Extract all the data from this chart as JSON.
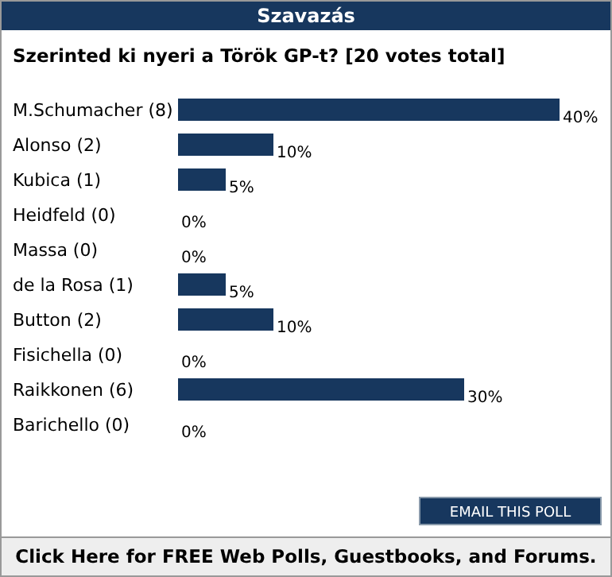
{
  "chart_data": {
    "type": "bar",
    "orientation": "horizontal",
    "title": "Szavazás",
    "subtitle": "Szerinted ki nyeri a Török GP-t? [20 votes total]",
    "categories": [
      "M.Schumacher (8)",
      "Alonso (2)",
      "Kubica (1)",
      "Heidfeld (0)",
      "Massa (0)",
      "de la Rosa (1)",
      "Button (2)",
      "Fisichella (0)",
      "Raikkonen (6)",
      "Barichello (0)"
    ],
    "values": [
      40,
      10,
      5,
      0,
      0,
      5,
      10,
      0,
      30,
      0
    ],
    "value_labels": [
      "40%",
      "10%",
      "5%",
      "0%",
      "0%",
      "5%",
      "10%",
      "0%",
      "30%",
      "0%"
    ],
    "color": "#17375e",
    "xlim": [
      0,
      40
    ],
    "annotations": [
      "EMAIL THIS POLL",
      "Click Here for FREE Web Polls, Guestbooks, and Forums."
    ]
  }
}
